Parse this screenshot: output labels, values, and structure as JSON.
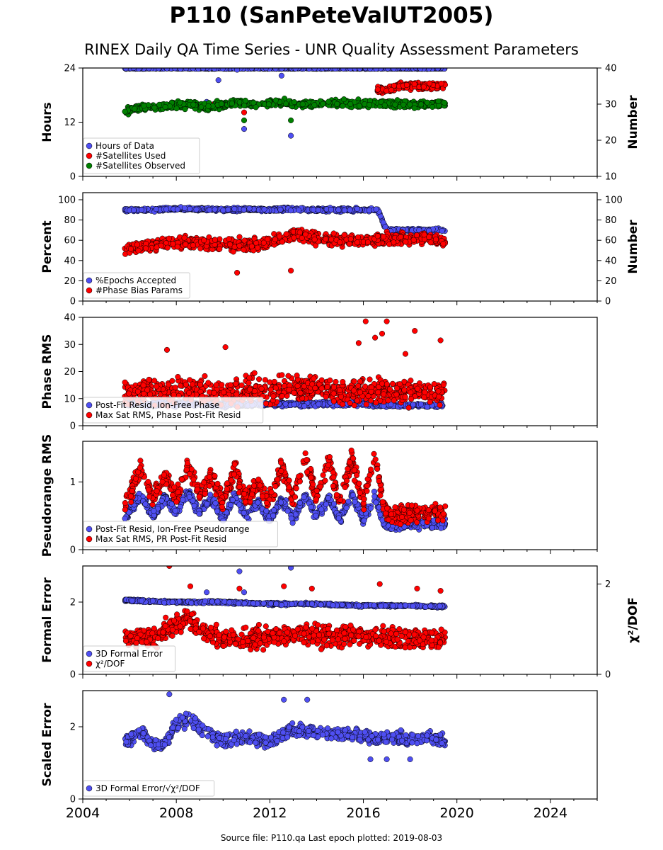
{
  "figure": {
    "title": "P110 (SanPeteValUT2005)",
    "subtitle": "RINEX Daily QA Time Series - UNR Quality Assessment Parameters",
    "footer": "Source file: P110.qa Last epoch plotted: 2019-08-03",
    "colors": {
      "blue": "#4f4ff2",
      "red": "#ff0000",
      "green": "#008000",
      "edge": "#000000"
    }
  },
  "chart_data": [
    {
      "type": "scatter",
      "ylabel": "Hours",
      "ylabel_right": "Number",
      "xlim": [
        2004,
        2026
      ],
      "ylim": [
        0,
        24
      ],
      "ylim_right": [
        10,
        40
      ],
      "yticks": [
        0,
        12,
        24
      ],
      "yticks_right": [
        10,
        20,
        30,
        40
      ],
      "x_start": 2005.8,
      "x_end": 2019.59,
      "legend": [
        {
          "label": "Hours of Data",
          "color": "#4f4ff2"
        },
        {
          "label": "#Satellites Used",
          "color": "#ff0000"
        },
        {
          "label": "#Satellites Observed",
          "color": "#008000"
        }
      ],
      "series": [
        {
          "name": "Hours of Data",
          "color": "#4f4ff2",
          "axis": "left",
          "x": [
            2005.8,
            2007.0,
            2008.0,
            2009.0,
            2010.0,
            2011.0,
            2012.0,
            2013.0,
            2014.0,
            2015.0,
            2016.0,
            2017.0,
            2018.0,
            2019.0,
            2019.5
          ],
          "y": [
            23.9,
            23.9,
            23.9,
            23.9,
            23.9,
            23.9,
            23.9,
            23.9,
            23.9,
            23.9,
            23.9,
            23.9,
            23.9,
            23.9,
            23.9
          ],
          "outliers_x": [
            2009.3,
            2009.8,
            2010.6,
            2010.9,
            2012.5,
            2012.9
          ],
          "outliers_y": [
            16.5,
            21.3,
            23.6,
            10.5,
            22.3,
            9.0
          ]
        },
        {
          "name": "#Satellites Used",
          "color": "#ff0000",
          "axis": "right",
          "x": [
            2016.6,
            2017.0,
            2017.5,
            2018.0,
            2018.5,
            2019.0,
            2019.5
          ],
          "y": [
            34.0,
            34.0,
            35.0,
            35.0,
            35.0,
            35.0,
            35.0
          ],
          "outliers_x": [
            2009.6,
            2010.9
          ],
          "outliers_y": [
            30.0,
            27.7
          ]
        },
        {
          "name": "#Satellites Observed",
          "color": "#008000",
          "axis": "right",
          "x": [
            2005.8,
            2006.5,
            2007.5,
            2008.5,
            2009.5,
            2010.5,
            2011.5,
            2012.5,
            2013.5,
            2014.5,
            2015.5,
            2016.5,
            2017.5,
            2018.5,
            2019.5
          ],
          "y": [
            28.0,
            29.0,
            29.5,
            29.8,
            29.3,
            30.5,
            30.0,
            30.3,
            30.0,
            30.2,
            30.0,
            30.3,
            30.0,
            30.0,
            30.0
          ],
          "outliers_x": [
            2010.9,
            2012.9
          ],
          "outliers_y": [
            25.5,
            25.5
          ]
        }
      ]
    },
    {
      "type": "scatter",
      "ylabel": "Percent",
      "ylabel_right": "Number",
      "xlim": [
        2004,
        2026
      ],
      "ylim": [
        0,
        107
      ],
      "ylim_right": [
        0,
        107
      ],
      "yticks": [
        0,
        20,
        40,
        60,
        80,
        100
      ],
      "yticks_right": [
        0,
        20,
        40,
        60,
        80,
        100
      ],
      "legend": [
        {
          "label": "%Epochs Accepted",
          "color": "#4f4ff2"
        },
        {
          "label": "#Phase Bias Params",
          "color": "#ff0000"
        }
      ],
      "series": [
        {
          "name": "%Epochs Accepted",
          "color": "#4f4ff2",
          "x": [
            2005.8,
            2007.0,
            2008.0,
            2009.0,
            2010.0,
            2011.0,
            2012.0,
            2013.0,
            2014.0,
            2015.0,
            2016.0,
            2016.6,
            2017.0,
            2018.0,
            2019.0,
            2019.5
          ],
          "y": [
            90,
            90,
            91,
            91,
            90,
            91,
            90,
            91,
            90,
            90,
            90,
            90,
            70,
            70,
            70,
            70
          ]
        },
        {
          "name": "#Phase Bias Params",
          "color": "#ff0000",
          "x": [
            2005.8,
            2007.0,
            2008.0,
            2009.0,
            2010.0,
            2011.0,
            2012.0,
            2013.0,
            2014.0,
            2015.0,
            2016.0,
            2017.0,
            2018.0,
            2019.0,
            2019.5
          ],
          "y": [
            52,
            55,
            58,
            57,
            55,
            55,
            58,
            66,
            62,
            60,
            60,
            61,
            62,
            62,
            58
          ],
          "outliers_x": [
            2010.6,
            2012.9
          ],
          "outliers_y": [
            28,
            30
          ]
        }
      ]
    },
    {
      "type": "scatter",
      "ylabel": "Phase RMS",
      "xlim": [
        2004,
        2026
      ],
      "ylim": [
        0,
        40
      ],
      "yticks": [
        0,
        10,
        20,
        30,
        40
      ],
      "legend": [
        {
          "label": "Post-Fit Resid, Ion-Free Phase",
          "color": "#4f4ff2"
        },
        {
          "label": "Max Sat RMS, Phase Post-Fit Resid",
          "color": "#ff0000"
        }
      ],
      "series": [
        {
          "name": "Post-Fit Resid, Ion-Free Phase",
          "color": "#4f4ff2",
          "x": [
            2005.8,
            2007.0,
            2008.0,
            2009.0,
            2010.0,
            2011.0,
            2012.0,
            2013.0,
            2014.0,
            2015.0,
            2016.0,
            2017.0,
            2018.0,
            2019.0,
            2019.5
          ],
          "y": [
            8,
            8,
            8,
            8,
            7.5,
            8,
            8,
            8,
            8,
            8,
            8,
            7.5,
            7.5,
            7.5,
            7.5
          ]
        },
        {
          "name": "Max Sat RMS, Phase Post-Fit Resid",
          "color": "#ff0000",
          "x": [
            2005.8,
            2007.0,
            2008.0,
            2009.0,
            2010.0,
            2011.0,
            2012.0,
            2013.0,
            2014.0,
            2015.0,
            2016.0,
            2017.0,
            2018.0,
            2019.0,
            2019.5
          ],
          "y": [
            12,
            13,
            13,
            13,
            12,
            13,
            13,
            14,
            14,
            13,
            13,
            13,
            12,
            12,
            12
          ],
          "outliers_x": [
            2007.6,
            2010.1,
            2015.8,
            2016.1,
            2016.5,
            2016.8,
            2017.0,
            2017.8,
            2018.2,
            2019.3
          ],
          "outliers_y": [
            28,
            29,
            30.5,
            38.5,
            32.5,
            34,
            38.5,
            26.5,
            35,
            31.5
          ]
        }
      ]
    },
    {
      "type": "scatter",
      "ylabel": "Pseudorange RMS",
      "xlim": [
        2004,
        2026
      ],
      "ylim": [
        0,
        1.6
      ],
      "yticks": [
        0,
        1
      ],
      "legend": [
        {
          "label": "Post-Fit Resid, Ion-Free Pseudorange",
          "color": "#4f4ff2"
        },
        {
          "label": "Max Sat RMS, PR Post-Fit Resid",
          "color": "#ff0000"
        }
      ],
      "series": [
        {
          "name": "Post-Fit Resid, Ion-Free Pseudorange",
          "color": "#4f4ff2",
          "x": [
            2005.8,
            2006.5,
            2007.0,
            2007.5,
            2008.0,
            2008.5,
            2009.0,
            2009.5,
            2010.0,
            2010.5,
            2011.0,
            2011.5,
            2012.0,
            2012.5,
            2013.0,
            2013.5,
            2014.0,
            2014.5,
            2015.0,
            2015.5,
            2016.0,
            2016.5,
            2016.9,
            2017.5,
            2018.0,
            2019.0,
            2019.5
          ],
          "y": [
            0.5,
            0.8,
            0.5,
            0.75,
            0.55,
            0.85,
            0.55,
            0.75,
            0.45,
            0.8,
            0.5,
            0.7,
            0.45,
            0.75,
            0.45,
            0.8,
            0.5,
            0.75,
            0.45,
            0.8,
            0.45,
            0.8,
            0.35,
            0.35,
            0.38,
            0.38,
            0.38
          ]
        },
        {
          "name": "Max Sat RMS, PR Post-Fit Resid",
          "color": "#ff0000",
          "x": [
            2005.8,
            2006.5,
            2007.0,
            2007.5,
            2008.0,
            2008.5,
            2009.0,
            2009.5,
            2010.0,
            2010.5,
            2011.0,
            2011.5,
            2012.0,
            2012.5,
            2013.0,
            2013.5,
            2014.0,
            2014.5,
            2015.0,
            2015.5,
            2016.0,
            2016.5,
            2016.9,
            2017.5,
            2018.0,
            2019.0,
            2019.5
          ],
          "y": [
            0.65,
            1.2,
            0.75,
            1.1,
            0.8,
            1.25,
            0.8,
            1.1,
            0.7,
            1.2,
            0.75,
            1.0,
            0.7,
            1.25,
            0.7,
            1.4,
            0.75,
            1.3,
            0.7,
            1.35,
            0.7,
            1.4,
            0.55,
            0.5,
            0.55,
            0.55,
            0.55
          ]
        }
      ]
    },
    {
      "type": "scatter",
      "ylabel": "Formal Error",
      "ylabel_right": "χ²/DOF",
      "xlim": [
        2004,
        2026
      ],
      "ylim": [
        0,
        3.0
      ],
      "ylim_right": [
        0,
        2.4
      ],
      "yticks": [
        0,
        2
      ],
      "yticks_right": [
        0,
        2
      ],
      "legend": [
        {
          "label": "3D Formal Error",
          "color": "#4f4ff2"
        },
        {
          "label": "χ²/DOF",
          "color": "#ff0000"
        }
      ],
      "series": [
        {
          "name": "3D Formal Error",
          "color": "#4f4ff2",
          "axis": "left",
          "x": [
            2005.8,
            2007.0,
            2008.0,
            2009.0,
            2010.0,
            2011.0,
            2012.0,
            2013.0,
            2014.0,
            2015.0,
            2016.0,
            2017.0,
            2018.0,
            2019.0,
            2019.5
          ],
          "y": [
            2.05,
            2.02,
            2.0,
            2.0,
            2.0,
            1.97,
            1.95,
            1.95,
            1.95,
            1.92,
            1.9,
            1.9,
            1.9,
            1.88,
            1.88
          ],
          "outliers_x": [
            2009.3,
            2010.7,
            2010.9,
            2012.9
          ],
          "outliers_y": [
            2.27,
            2.85,
            2.27,
            2.95
          ]
        },
        {
          "name": "χ²/DOF",
          "color": "#ff0000",
          "axis": "right",
          "x": [
            2005.8,
            2006.5,
            2007.0,
            2008.0,
            2008.5,
            2009.0,
            2010.0,
            2011.0,
            2012.0,
            2013.0,
            2014.0,
            2015.0,
            2016.0,
            2017.0,
            2018.0,
            2019.0,
            2019.5
          ],
          "y": [
            0.75,
            0.85,
            0.8,
            1.1,
            1.3,
            1.0,
            0.8,
            0.8,
            0.8,
            0.9,
            0.9,
            0.85,
            0.85,
            0.8,
            0.8,
            0.8,
            0.8
          ],
          "outliers_x": [
            2007.7,
            2008.6,
            2010.7,
            2012.6,
            2013.8,
            2016.7,
            2018.3,
            2019.3
          ],
          "outliers_y": [
            2.4,
            1.95,
            1.9,
            1.95,
            1.9,
            2.0,
            1.9,
            1.85
          ]
        }
      ]
    },
    {
      "type": "scatter",
      "ylabel": "Scaled Error",
      "xlim": [
        2004,
        2026
      ],
      "ylim": [
        0,
        3.0
      ],
      "yticks": [
        0,
        2
      ],
      "xticks": [
        2004,
        2008,
        2012,
        2016,
        2020,
        2024
      ],
      "legend": [
        {
          "label": "3D Formal Error/√χ²/DOF",
          "color": "#4f4ff2"
        }
      ],
      "series": [
        {
          "name": "3D Formal Error/√χ²/DOF",
          "color": "#4f4ff2",
          "x": [
            2005.8,
            2006.5,
            2007.0,
            2007.5,
            2008.0,
            2008.5,
            2009.0,
            2009.5,
            2010.0,
            2011.0,
            2012.0,
            2013.0,
            2014.0,
            2015.0,
            2016.0,
            2017.0,
            2018.0,
            2019.0,
            2019.5
          ],
          "y": [
            1.6,
            1.9,
            1.5,
            1.5,
            2.1,
            2.2,
            2.0,
            1.7,
            1.6,
            1.7,
            1.6,
            1.9,
            1.85,
            1.8,
            1.75,
            1.7,
            1.65,
            1.7,
            1.6
          ],
          "outliers_x": [
            2007.7,
            2012.6,
            2013.6,
            2016.3,
            2017.0,
            2018.0
          ],
          "outliers_y": [
            2.9,
            2.75,
            2.75,
            1.1,
            1.1,
            1.1
          ]
        }
      ]
    }
  ]
}
